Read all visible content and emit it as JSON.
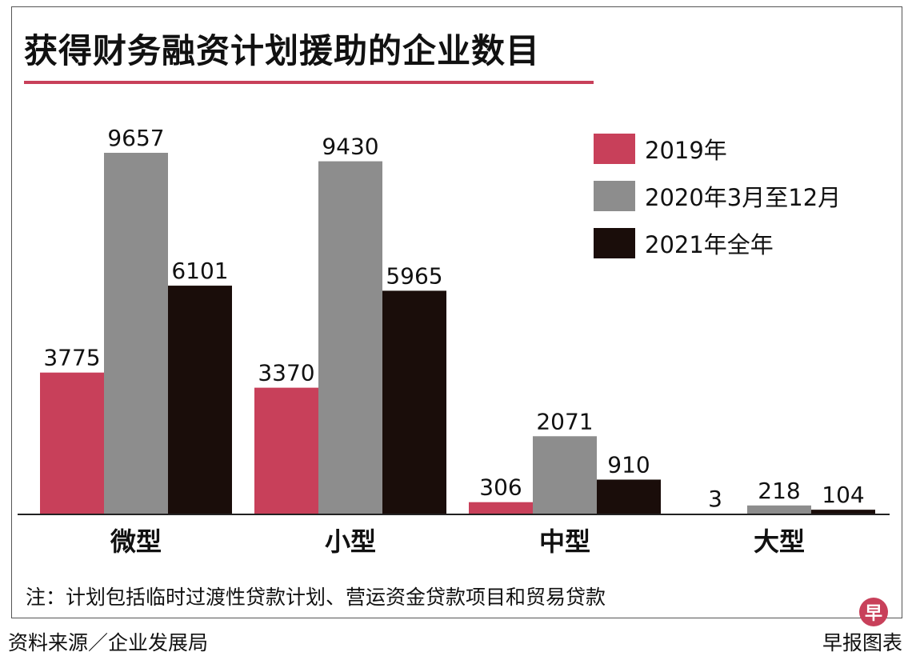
{
  "chart_data": {
    "type": "bar",
    "title": "获得财务融资计划援助的企业数目",
    "categories": [
      "微型",
      "小型",
      "中型",
      "大型"
    ],
    "series": [
      {
        "name": "2019年",
        "color": "#c8405a",
        "values": [
          3775,
          3370,
          306,
          3
        ]
      },
      {
        "name": "2020年3月至12月",
        "color": "#8d8d8d",
        "values": [
          9657,
          9430,
          2071,
          218
        ]
      },
      {
        "name": "2021年全年",
        "color": "#1a0d0a",
        "values": [
          6101,
          5965,
          910,
          104
        ]
      }
    ],
    "xlabel": "",
    "ylabel": "",
    "ylim": [
      0,
      9657
    ],
    "grid": false,
    "legend_position": "top-right"
  },
  "note": "注：计划包括临时过渡性贷款计划、营运资金贷款项目和贸易贷款",
  "source": "资料来源／企业发展局",
  "brand": "早报图表",
  "brand_logo": "早"
}
